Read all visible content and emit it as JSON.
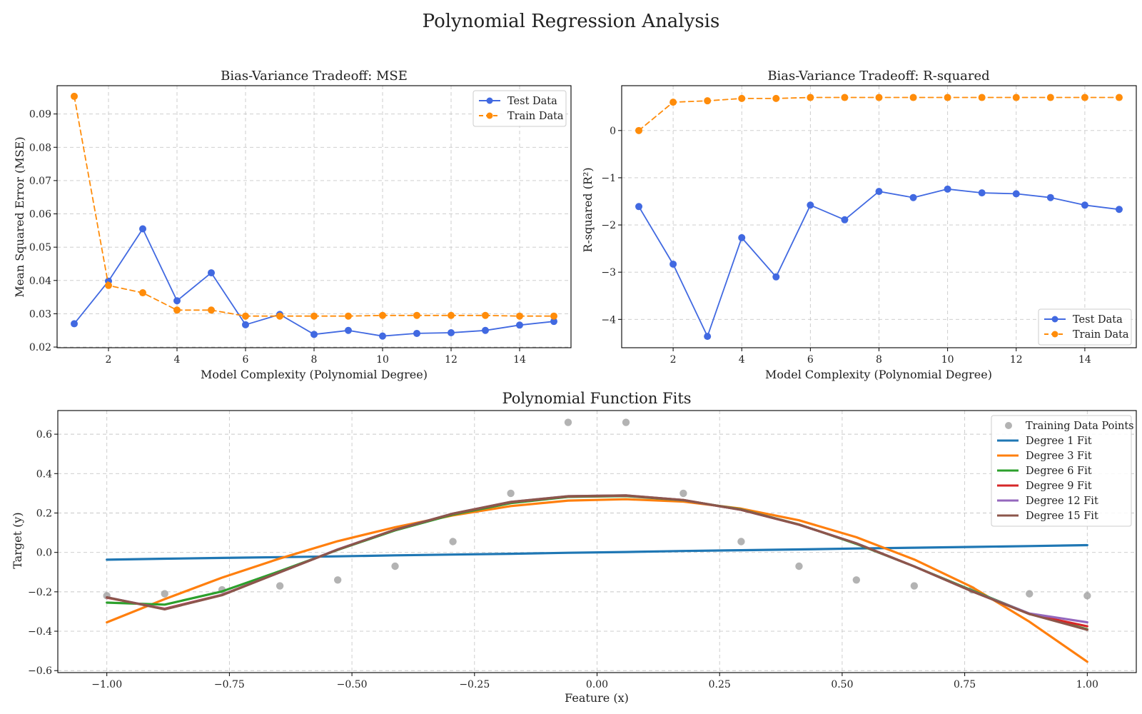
{
  "figure_title": "Polynomial Regression Analysis",
  "colors": {
    "test": "#4169e1",
    "train": "#ff8c0a",
    "training_points": "#999999",
    "deg1": "#1f77b4",
    "deg3": "#ff7f0e",
    "deg6": "#2ca02c",
    "deg9": "#d62728",
    "deg12": "#9467bd",
    "deg15": "#8c564b"
  },
  "chart_data": [
    {
      "type": "line",
      "title": "Bias-Variance Tradeoff:  MSE",
      "xlabel": "Model Complexity (Polynomial Degree)",
      "ylabel": "Mean Squared Error (MSE)",
      "xlim": [
        0.5,
        15.5
      ],
      "ylim": [
        0.0198,
        0.0985
      ],
      "xticks": [
        2,
        4,
        6,
        8,
        10,
        12,
        14
      ],
      "yticks": [
        0.02,
        0.03,
        0.04,
        0.05,
        0.06,
        0.07,
        0.08,
        0.09
      ],
      "ytick_labels": [
        "0.02",
        "0.03",
        "0.04",
        "0.05",
        "0.06",
        "0.07",
        "0.08",
        "0.09"
      ],
      "grid": true,
      "legend": "top-right",
      "x": [
        1,
        2,
        3,
        4,
        5,
        6,
        7,
        8,
        9,
        10,
        11,
        12,
        13,
        14,
        15
      ],
      "series": [
        {
          "name": "Test Data",
          "style": "solid",
          "color": "#4169e1",
          "values": [
            0.027,
            0.0398,
            0.0555,
            0.0339,
            0.0423,
            0.0267,
            0.0298,
            0.0238,
            0.025,
            0.0233,
            0.0241,
            0.0243,
            0.025,
            0.0266,
            0.0277
          ]
        },
        {
          "name": "Train Data",
          "style": "dashed",
          "color": "#ff8c0a",
          "values": [
            0.0953,
            0.0385,
            0.0363,
            0.0311,
            0.0311,
            0.0293,
            0.0293,
            0.0293,
            0.0293,
            0.0295,
            0.0295,
            0.0295,
            0.0295,
            0.0293,
            0.0293
          ]
        }
      ]
    },
    {
      "type": "line",
      "title": "Bias-Variance Tradeoff:  R-squared",
      "xlabel": "Model Complexity (Polynomial Degree)",
      "ylabel": "R-squared (R²)",
      "xlim": [
        0.5,
        15.5
      ],
      "ylim": [
        -4.6,
        0.95
      ],
      "xticks": [
        2,
        4,
        6,
        8,
        10,
        12,
        14
      ],
      "yticks": [
        0,
        -1,
        -2,
        -3,
        -4
      ],
      "ytick_labels": [
        "0",
        "−1",
        "−2",
        "−3",
        "−4"
      ],
      "grid": true,
      "legend": "bottom-right",
      "x": [
        1,
        2,
        3,
        4,
        5,
        6,
        7,
        8,
        9,
        10,
        11,
        12,
        13,
        14,
        15
      ],
      "series": [
        {
          "name": "Test Data",
          "style": "solid",
          "color": "#4169e1",
          "values": [
            -1.61,
            -2.83,
            -4.36,
            -2.27,
            -3.1,
            -1.58,
            -1.89,
            -1.29,
            -1.42,
            -1.24,
            -1.32,
            -1.34,
            -1.42,
            -1.58,
            -1.67
          ]
        },
        {
          "name": "Train Data",
          "style": "dashed",
          "color": "#ff8c0a",
          "values": [
            0.0,
            0.6,
            0.63,
            0.68,
            0.68,
            0.7,
            0.7,
            0.7,
            0.7,
            0.7,
            0.7,
            0.7,
            0.7,
            0.7,
            0.7
          ]
        }
      ]
    },
    {
      "type": "line",
      "title": "Polynomial Function Fits",
      "xlabel": "Feature (x)",
      "ylabel": "Target (y)",
      "xlim": [
        -1.1,
        1.1
      ],
      "ylim": [
        -0.61,
        0.72
      ],
      "xticks": [
        -1.0,
        -0.75,
        -0.5,
        -0.25,
        0.0,
        0.25,
        0.5,
        0.75,
        1.0
      ],
      "xtick_labels": [
        "−1.00",
        "−0.75",
        "−0.50",
        "−0.25",
        "0.00",
        "0.25",
        "0.50",
        "0.75",
        "1.00"
      ],
      "yticks": [
        -0.6,
        -0.4,
        -0.2,
        0.0,
        0.2,
        0.4,
        0.6
      ],
      "ytick_labels": [
        "−0.6",
        "−0.4",
        "−0.2",
        "0.0",
        "0.2",
        "0.4",
        "0.6"
      ],
      "grid": true,
      "legend": "top-right",
      "scatter": {
        "name": "Training Data Points",
        "color": "#999999",
        "x": [
          -1.0,
          -0.882,
          -0.765,
          -0.647,
          -0.529,
          -0.412,
          -0.294,
          -0.176,
          -0.059,
          0.059,
          0.176,
          0.294,
          0.412,
          0.529,
          0.647,
          0.765,
          0.882,
          1.0
        ],
        "y": [
          -0.22,
          -0.21,
          -0.19,
          -0.17,
          -0.14,
          -0.07,
          0.055,
          0.3,
          0.66,
          0.66,
          0.3,
          0.055,
          -0.07,
          -0.14,
          -0.17,
          -0.19,
          -0.21,
          -0.22
        ]
      },
      "x": [
        -1.0,
        -0.882,
        -0.765,
        -0.647,
        -0.529,
        -0.412,
        -0.294,
        -0.176,
        -0.059,
        0.059,
        0.176,
        0.294,
        0.412,
        0.529,
        0.647,
        0.765,
        0.882,
        1.0
      ],
      "series": [
        {
          "name": "Degree 1 Fit",
          "color": "#1f77b4",
          "values": [
            -0.037,
            -0.032,
            -0.028,
            -0.024,
            -0.02,
            -0.015,
            -0.011,
            -0.007,
            -0.002,
            0.002,
            0.007,
            0.011,
            0.015,
            0.02,
            0.024,
            0.028,
            0.032,
            0.037
          ]
        },
        {
          "name": "Degree 3 Fit",
          "color": "#ff7f0e",
          "values": [
            -0.355,
            -0.237,
            -0.128,
            -0.031,
            0.057,
            0.128,
            0.188,
            0.235,
            0.263,
            0.27,
            0.258,
            0.222,
            0.163,
            0.077,
            -0.036,
            -0.176,
            -0.352,
            -0.555
          ]
        },
        {
          "name": "Degree 6 Fit",
          "color": "#2ca02c",
          "values": [
            -0.255,
            -0.265,
            -0.198,
            -0.095,
            0.013,
            0.112,
            0.192,
            0.25,
            0.282,
            0.286,
            0.265,
            0.218,
            0.142,
            0.043,
            -0.071,
            -0.193,
            -0.311,
            -0.39
          ]
        },
        {
          "name": "Degree 9 Fit",
          "color": "#d62728",
          "values": [
            -0.23,
            -0.286,
            -0.215,
            -0.101,
            0.015,
            0.115,
            0.196,
            0.255,
            0.284,
            0.288,
            0.266,
            0.216,
            0.141,
            0.046,
            -0.071,
            -0.197,
            -0.313,
            -0.375
          ]
        },
        {
          "name": "Degree 12 Fit",
          "color": "#9467bd",
          "values": [
            -0.228,
            -0.288,
            -0.216,
            -0.101,
            0.015,
            0.115,
            0.197,
            0.256,
            0.285,
            0.289,
            0.266,
            0.216,
            0.141,
            0.046,
            -0.071,
            -0.197,
            -0.31,
            -0.355
          ]
        },
        {
          "name": "Degree 15 Fit",
          "color": "#8c564b",
          "values": [
            -0.228,
            -0.289,
            -0.217,
            -0.101,
            0.014,
            0.115,
            0.197,
            0.256,
            0.285,
            0.289,
            0.266,
            0.216,
            0.141,
            0.046,
            -0.071,
            -0.198,
            -0.313,
            -0.393
          ]
        }
      ]
    }
  ]
}
